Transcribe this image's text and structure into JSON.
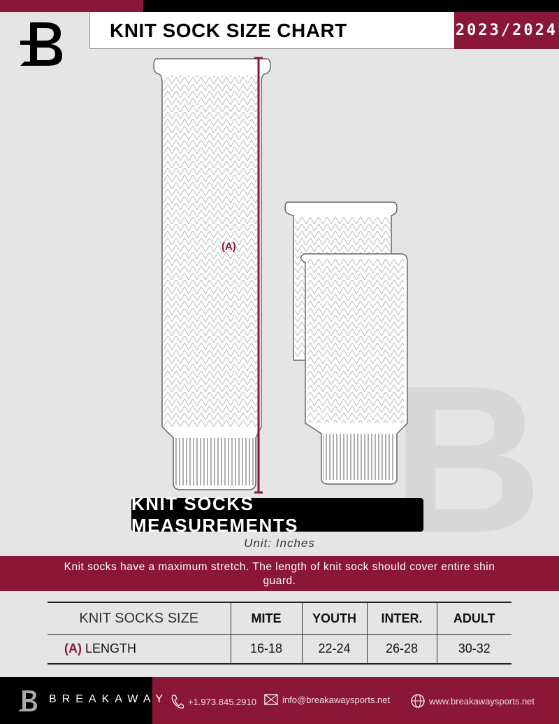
{
  "header": {
    "title": "KNIT SOCK SIZE CHART",
    "season": "2023/2024"
  },
  "diagram": {
    "measure_label": "(A)"
  },
  "banner": "KNIT SOCKS MEASUREMENTS",
  "unit": "Unit: Inches",
  "note": "Knit socks have a maximum stretch. The length of knit sock should cover entire shin guard.",
  "table": {
    "headers": [
      "KNIT SOCKS SIZE",
      "MITE",
      "YOUTH",
      "INTER.",
      "ADULT"
    ],
    "rows": [
      {
        "marker": "(A)",
        "label": "LENGTH",
        "values": [
          "16-18",
          "22-24",
          "26-28",
          "30-32"
        ]
      }
    ]
  },
  "footer": {
    "brand": "BREAKAWAY",
    "phone": "+1.973.845.2910",
    "email": "info@breakawaysports.net",
    "website": "www.breakawaysports.net"
  },
  "colors": {
    "accent": "#8a1738",
    "background": "#e4e5e4"
  }
}
